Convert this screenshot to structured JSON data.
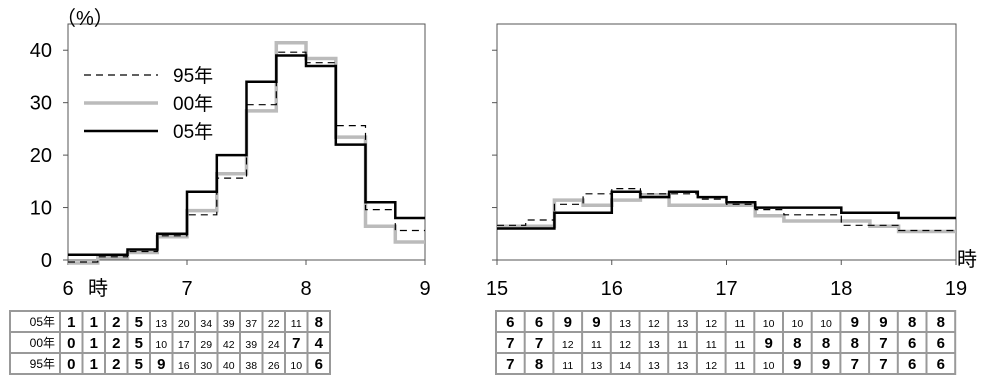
{
  "chart_data": [
    {
      "type": "line",
      "step": true,
      "x_unit": "時",
      "y_unit": "（%）",
      "xlim": [
        6,
        9
      ],
      "ylim": [
        0,
        45
      ],
      "x_ticks": [
        "6",
        "7",
        "8",
        "9"
      ],
      "y_ticks": [
        "0",
        "10",
        "20",
        "30",
        "40"
      ],
      "legend": "top-left",
      "x": [
        6.0,
        6.25,
        6.5,
        6.75,
        7.0,
        7.25,
        7.5,
        7.75,
        8.0,
        8.25,
        8.5,
        8.75
      ],
      "series": [
        {
          "name": "95年",
          "style": "dashed",
          "color": "#000000",
          "values": [
            0,
            1,
            2,
            5,
            9,
            16,
            30,
            40,
            38,
            26,
            10,
            6
          ]
        },
        {
          "name": "00年",
          "style": "gray",
          "color": "#bbbbbb",
          "values": [
            0,
            1,
            2,
            5,
            10,
            17,
            29,
            42,
            39,
            24,
            7,
            4
          ]
        },
        {
          "name": "05年",
          "style": "solid",
          "color": "#000000",
          "values": [
            1,
            1,
            2,
            5,
            13,
            20,
            34,
            39,
            37,
            22,
            11,
            8
          ]
        }
      ]
    },
    {
      "type": "line",
      "step": true,
      "x_unit": "時",
      "xlim": [
        15,
        19
      ],
      "ylim": [
        0,
        45
      ],
      "x_ticks": [
        "15",
        "16",
        "17",
        "18",
        "19"
      ],
      "x": [
        15.0,
        15.25,
        15.5,
        15.75,
        16.0,
        16.25,
        16.5,
        16.75,
        17.0,
        17.25,
        17.5,
        17.75,
        18.0,
        18.25,
        18.5,
        18.75
      ],
      "series": [
        {
          "name": "95年",
          "style": "dashed",
          "color": "#000000",
          "values": [
            7,
            8,
            11,
            13,
            14,
            13,
            13,
            12,
            11,
            10,
            9,
            9,
            7,
            7,
            6,
            6
          ]
        },
        {
          "name": "00年",
          "style": "gray",
          "color": "#bbbbbb",
          "values": [
            7,
            7,
            12,
            11,
            12,
            13,
            11,
            11,
            11,
            9,
            8,
            8,
            8,
            7,
            6,
            6
          ]
        },
        {
          "name": "05年",
          "style": "solid",
          "color": "#000000",
          "values": [
            6,
            6,
            9,
            9,
            13,
            12,
            13,
            12,
            11,
            10,
            10,
            10,
            9,
            9,
            8,
            8
          ]
        }
      ]
    }
  ],
  "tables": {
    "row_labels": [
      "05年",
      "00年",
      "95年"
    ],
    "morning": [
      [
        1,
        1,
        2,
        5,
        13,
        20,
        34,
        39,
        37,
        22,
        11,
        8
      ],
      [
        0,
        1,
        2,
        5,
        10,
        17,
        29,
        42,
        39,
        24,
        7,
        4
      ],
      [
        0,
        1,
        2,
        5,
        9,
        16,
        30,
        40,
        38,
        26,
        10,
        6
      ]
    ],
    "evening": [
      [
        6,
        6,
        9,
        9,
        13,
        12,
        13,
        12,
        11,
        10,
        10,
        10,
        9,
        9,
        8,
        8
      ],
      [
        7,
        7,
        12,
        11,
        12,
        13,
        11,
        11,
        11,
        9,
        8,
        8,
        8,
        7,
        6,
        6
      ],
      [
        7,
        8,
        11,
        13,
        14,
        13,
        13,
        12,
        11,
        10,
        9,
        9,
        7,
        7,
        6,
        6
      ]
    ]
  },
  "colors": {
    "gray": "#bbbbbb",
    "table_border": "#999999",
    "axis": "#555555"
  }
}
